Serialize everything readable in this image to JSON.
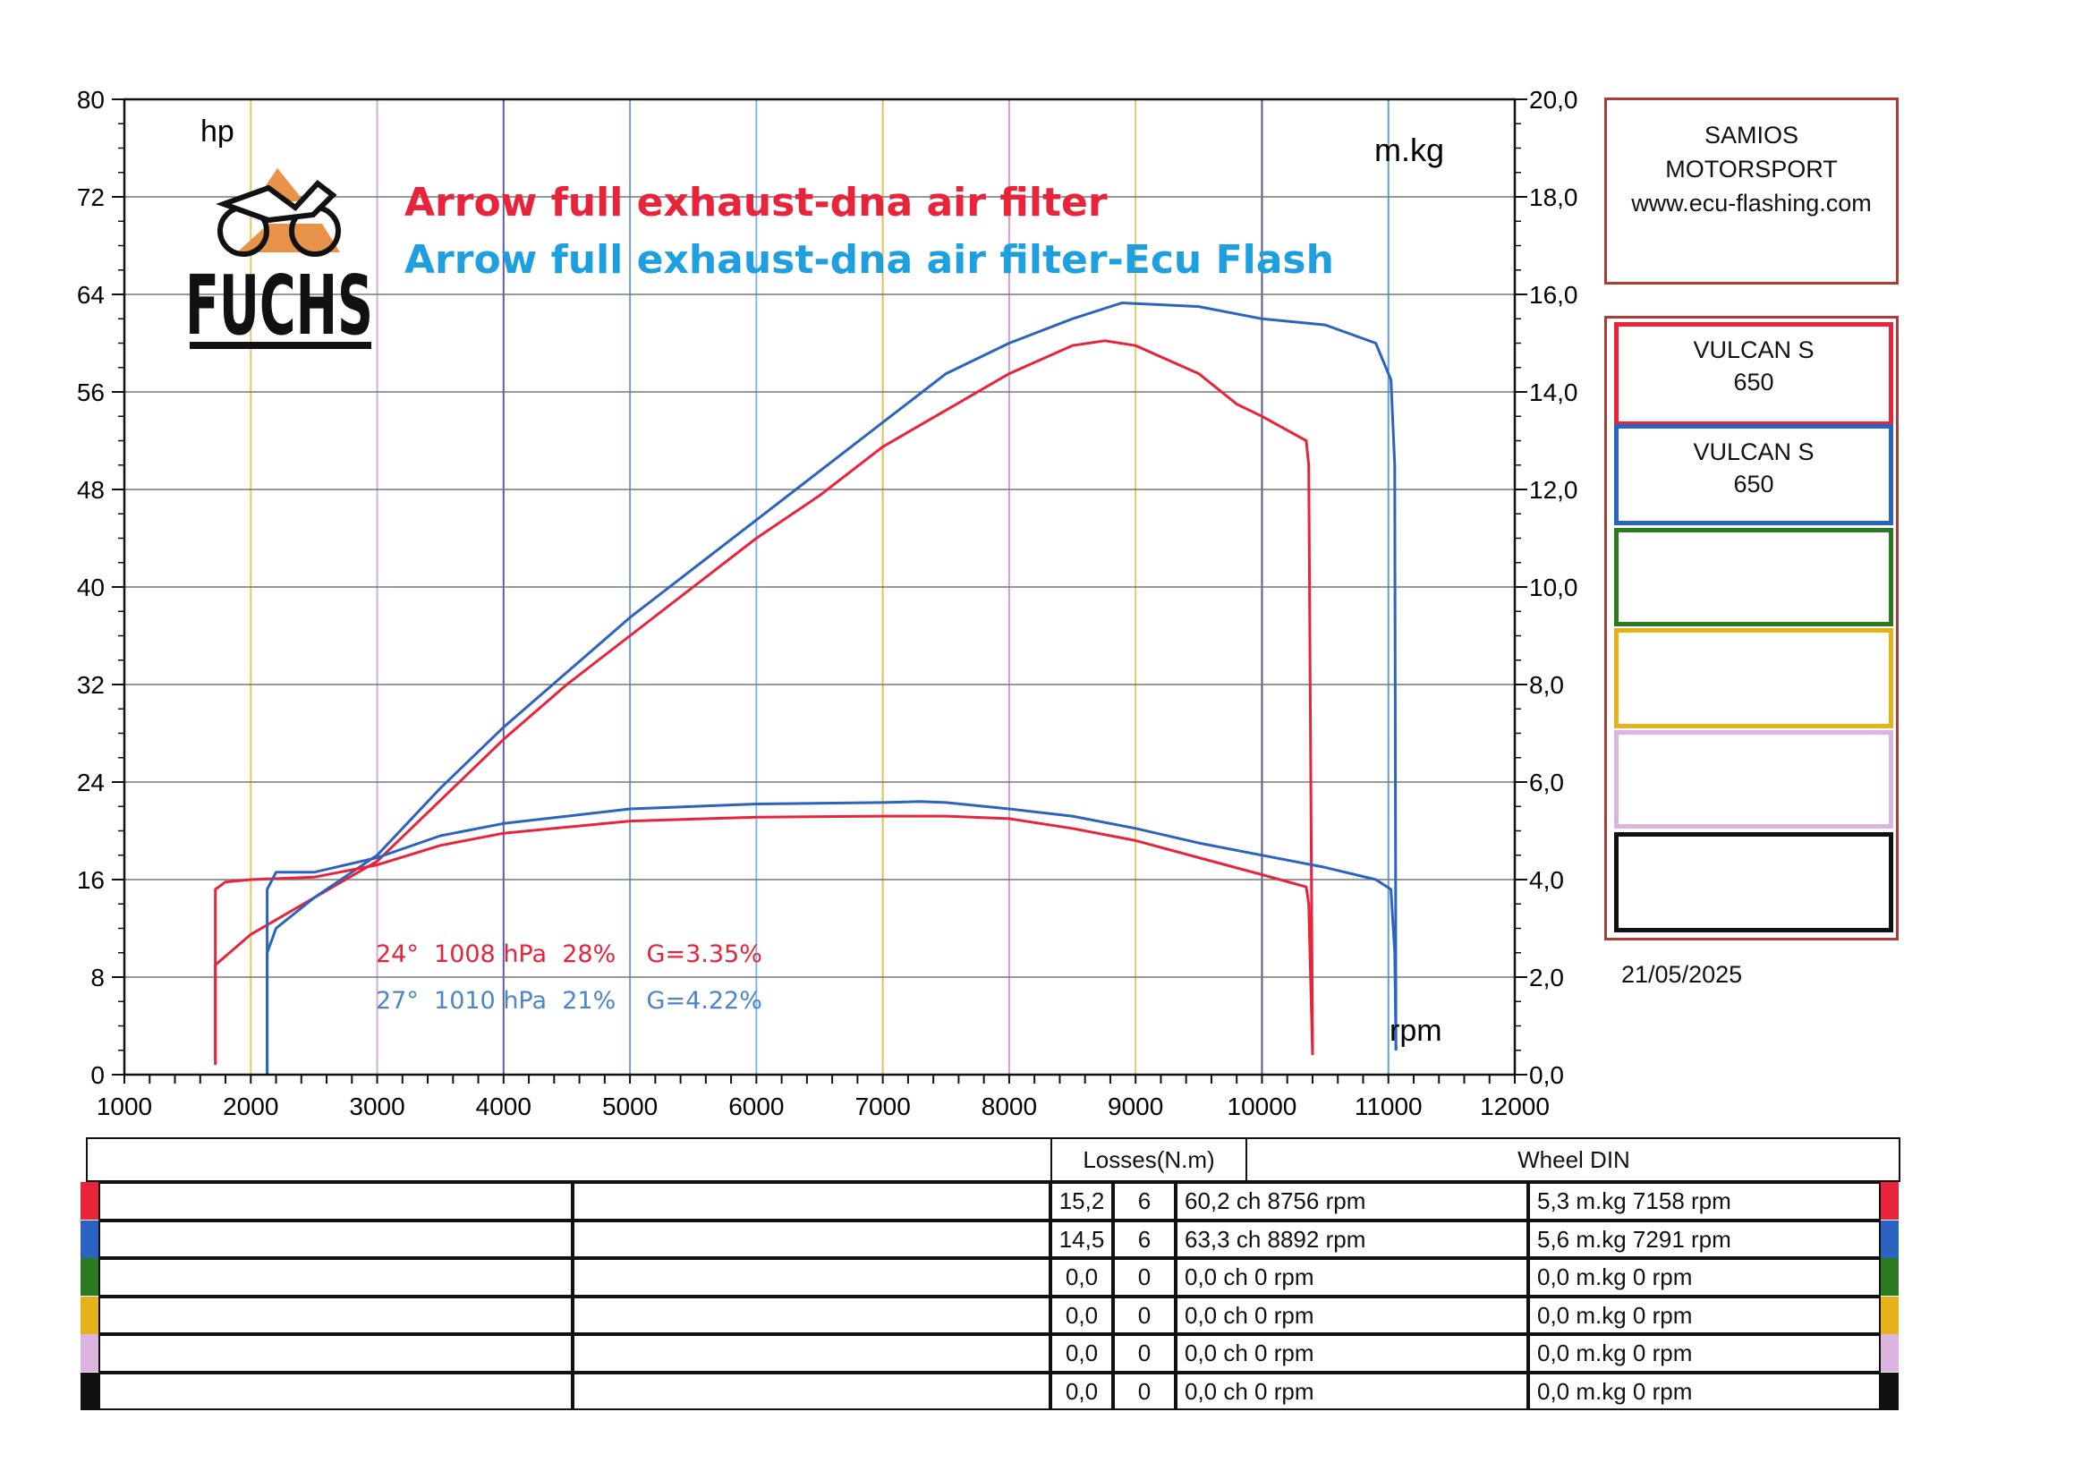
{
  "chart_data": {
    "type": "line",
    "title": "",
    "series_titles": [
      "Arrow full exhaust-dna air filter",
      "Arrow full exhaust-dna air filter-Ecu Flash"
    ],
    "xlabel": "rpm",
    "ylabel_left": "hp",
    "ylabel_right": "m.kg",
    "xlim": [
      1000,
      12000
    ],
    "ylim_left": [
      0,
      80
    ],
    "ylim_right": [
      0,
      20
    ],
    "x_ticks": [
      "1000",
      "2000",
      "3000",
      "4000",
      "5000",
      "6000",
      "7000",
      "8000",
      "9000",
      "10000",
      "11000",
      "12000"
    ],
    "y_left_ticks": [
      "0",
      "8",
      "16",
      "24",
      "32",
      "40",
      "48",
      "56",
      "64",
      "72",
      "80"
    ],
    "y_right_ticks": [
      "0,0",
      "2,0",
      "4,0",
      "6,0",
      "8,0",
      "10,0",
      "12,0",
      "14,0",
      "16,0",
      "18,0",
      "20,0"
    ],
    "grid": true,
    "series": [
      {
        "name": "Arrow full exhaust-dna air filter",
        "color": "#e8233a",
        "kind": "power",
        "axis": "left",
        "points": [
          [
            1720,
            1
          ],
          [
            1720,
            9
          ],
          [
            2000,
            11.5
          ],
          [
            2500,
            14.5
          ],
          [
            3000,
            17.5
          ],
          [
            3500,
            22.5
          ],
          [
            4000,
            27.5
          ],
          [
            4500,
            32
          ],
          [
            5000,
            36
          ],
          [
            5500,
            40
          ],
          [
            6000,
            44
          ],
          [
            6500,
            47.5
          ],
          [
            7000,
            51.5
          ],
          [
            7500,
            54.5
          ],
          [
            8000,
            57.5
          ],
          [
            8500,
            59.8
          ],
          [
            8756,
            60.2
          ],
          [
            9000,
            59.8
          ],
          [
            9500,
            57.5
          ],
          [
            9800,
            55
          ],
          [
            10000,
            54
          ],
          [
            10350,
            52
          ],
          [
            10370,
            50
          ],
          [
            10400,
            2
          ]
        ]
      },
      {
        "name": "Arrow full exhaust-dna air filter-Ecu Flash",
        "color": "#2b63c0",
        "kind": "power",
        "axis": "left",
        "points": [
          [
            2130,
            0
          ],
          [
            2130,
            10
          ],
          [
            2200,
            12
          ],
          [
            2500,
            14.5
          ],
          [
            3000,
            18
          ],
          [
            3500,
            23.5
          ],
          [
            4000,
            28.5
          ],
          [
            4500,
            33
          ],
          [
            5000,
            37.5
          ],
          [
            5500,
            41.5
          ],
          [
            6000,
            45.5
          ],
          [
            6500,
            49.5
          ],
          [
            7000,
            53.5
          ],
          [
            7500,
            57.5
          ],
          [
            8000,
            60
          ],
          [
            8500,
            62
          ],
          [
            8892,
            63.3
          ],
          [
            9500,
            63
          ],
          [
            10000,
            62
          ],
          [
            10500,
            61.5
          ],
          [
            10900,
            60
          ],
          [
            11020,
            57
          ],
          [
            11050,
            50
          ],
          [
            11060,
            2
          ]
        ]
      },
      {
        "name": "Arrow full exhaust-dna air filter",
        "color": "#e8233a",
        "kind": "torque",
        "axis": "right",
        "points": [
          [
            1720,
            0.2
          ],
          [
            1720,
            3.8
          ],
          [
            1800,
            3.95
          ],
          [
            2000,
            4.0
          ],
          [
            2500,
            4.05
          ],
          [
            3000,
            4.3
          ],
          [
            3500,
            4.7
          ],
          [
            4000,
            4.95
          ],
          [
            5000,
            5.2
          ],
          [
            6000,
            5.28
          ],
          [
            7000,
            5.3
          ],
          [
            7158,
            5.3
          ],
          [
            7500,
            5.3
          ],
          [
            8000,
            5.25
          ],
          [
            8500,
            5.05
          ],
          [
            9000,
            4.8
          ],
          [
            9500,
            4.45
          ],
          [
            10000,
            4.1
          ],
          [
            10350,
            3.85
          ],
          [
            10370,
            3.5
          ],
          [
            10400,
            0.4
          ]
        ]
      },
      {
        "name": "Arrow full exhaust-dna air filter-Ecu Flash",
        "color": "#2b63c0",
        "kind": "torque",
        "axis": "right",
        "points": [
          [
            2130,
            0
          ],
          [
            2130,
            3.8
          ],
          [
            2200,
            4.15
          ],
          [
            2500,
            4.15
          ],
          [
            3000,
            4.45
          ],
          [
            3500,
            4.9
          ],
          [
            4000,
            5.15
          ],
          [
            5000,
            5.45
          ],
          [
            6000,
            5.55
          ],
          [
            7000,
            5.58
          ],
          [
            7291,
            5.6
          ],
          [
            7500,
            5.58
          ],
          [
            8000,
            5.45
          ],
          [
            8500,
            5.3
          ],
          [
            9000,
            5.05
          ],
          [
            9500,
            4.75
          ],
          [
            10000,
            4.5
          ],
          [
            10500,
            4.25
          ],
          [
            10900,
            4.0
          ],
          [
            11020,
            3.8
          ],
          [
            11050,
            2.5
          ],
          [
            11060,
            0.5
          ]
        ]
      }
    ],
    "annotations": [
      {
        "text": "24°  1008 hPa  28%    G=3.35%",
        "color": "#e8233a"
      },
      {
        "text": "27°  1010 hPa  21%    G=4.22%",
        "color": "#4a86c8"
      }
    ]
  },
  "logo": {
    "text": "FUCHS",
    "icon": "motorcycle-icon"
  },
  "shop": {
    "line1": "SAMIOS",
    "line2": "MOTORSPORT",
    "line3": "www.ecu-flashing.com"
  },
  "legend": [
    {
      "color": "#e8233a",
      "line1": "VULCAN S",
      "line2": "650"
    },
    {
      "color": "#2b63c0",
      "line1": "VULCAN S",
      "line2": "650"
    },
    {
      "color": "#2b7a1f",
      "line1": "",
      "line2": ""
    },
    {
      "color": "#e6b21a",
      "line1": "",
      "line2": ""
    },
    {
      "color": "#dcb4e0",
      "line1": "",
      "line2": ""
    },
    {
      "color": "#111111",
      "line1": "",
      "line2": ""
    }
  ],
  "date": "21/05/2025",
  "table": {
    "losses_header": "Losses(N.m)",
    "wheel_header": "Wheel DIN",
    "rows": [
      {
        "color": "#e8233a",
        "loss": "15,2",
        "gear": "6",
        "power": "60,2 ch 8756 rpm",
        "torque": "5,3 m.kg 7158 rpm"
      },
      {
        "color": "#2b63c0",
        "loss": "14,5",
        "gear": "6",
        "power": "63,3 ch 8892 rpm",
        "torque": "5,6 m.kg 7291 rpm"
      },
      {
        "color": "#2b7a1f",
        "loss": "0,0",
        "gear": "0",
        "power": "0,0 ch 0 rpm",
        "torque": "0,0 m.kg 0 rpm"
      },
      {
        "color": "#e6b21a",
        "loss": "0,0",
        "gear": "0",
        "power": "0,0 ch 0 rpm",
        "torque": "0,0 m.kg 0 rpm"
      },
      {
        "color": "#dcb4e0",
        "loss": "0,0",
        "gear": "0",
        "power": "0,0 ch 0 rpm",
        "torque": "0,0 m.kg 0 rpm"
      },
      {
        "color": "#111111",
        "loss": "0,0",
        "gear": "0",
        "power": "0,0 ch 0 rpm",
        "torque": "0,0 m.kg 0 rpm"
      }
    ]
  }
}
